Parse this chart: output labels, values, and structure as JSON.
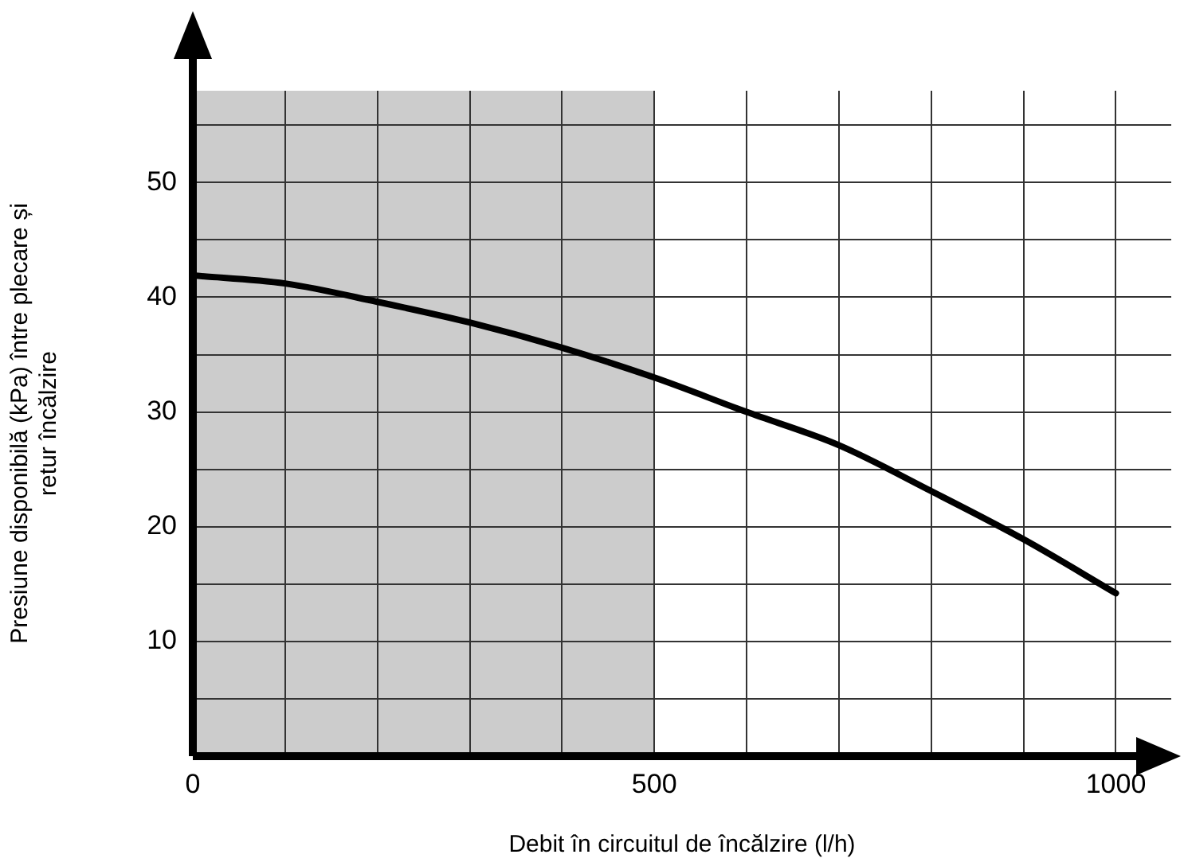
{
  "chart_data": {
    "type": "line",
    "xlabel": "Debit în circuitul de încălzire (l/h)",
    "ylabel": "Presiune disponibilă (kPa) între plecare și retur încălzire",
    "x": [
      0,
      100,
      200,
      300,
      400,
      500,
      600,
      700,
      800,
      900,
      1000
    ],
    "series": [
      {
        "color": "#000000",
        "values": [
          41.9,
          41.2,
          39.6,
          37.8,
          35.6,
          33.0,
          30.0,
          27.1,
          23.1,
          18.9,
          14.2
        ]
      }
    ],
    "xlim": [
      0,
      1060
    ],
    "ylim": [
      0,
      58
    ],
    "xticks": [
      0,
      {
        "value": 100,
        "label": null
      },
      {
        "value": 200,
        "label": null
      },
      {
        "value": 300,
        "label": null
      },
      {
        "value": 400,
        "label": null
      },
      500,
      {
        "value": 600,
        "label": null
      },
      {
        "value": 700,
        "label": null
      },
      {
        "value": 800,
        "label": null
      },
      {
        "value": 900,
        "label": null
      },
      1000
    ],
    "yticks": [
      {
        "value": 5,
        "label": null
      },
      10,
      {
        "value": 15,
        "label": null
      },
      20,
      {
        "value": 25,
        "label": null
      },
      30,
      {
        "value": 35,
        "label": null
      },
      40,
      {
        "value": 45,
        "label": null
      },
      50,
      {
        "value": 55,
        "label": null
      }
    ],
    "bands": [
      {
        "axis": "x",
        "from": 0,
        "to": 500,
        "color": "#cccccc"
      }
    ],
    "grid": true,
    "legend": false,
    "marker": "none",
    "line_style": "solid"
  }
}
